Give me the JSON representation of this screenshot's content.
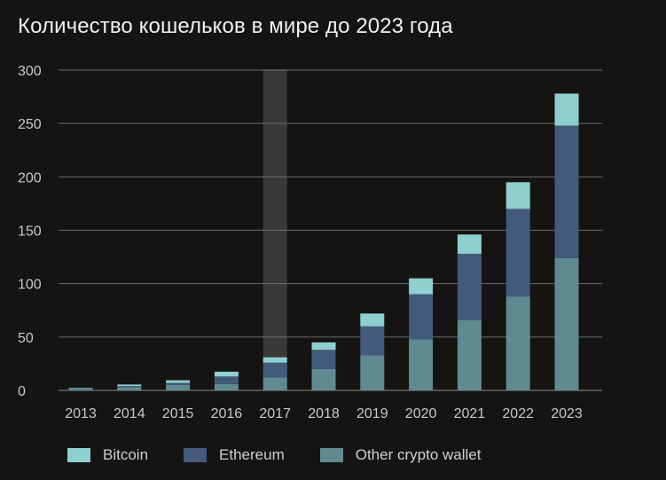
{
  "chart_data": {
    "type": "bar",
    "stacked": true,
    "title": "Количество кошельков в мире до 2023 года",
    "categories": [
      "2013",
      "2014",
      "2015",
      "2016",
      "2017",
      "2018",
      "2019",
      "2020",
      "2021",
      "2022",
      "2023"
    ],
    "series": [
      {
        "name": "Other crypto wallet",
        "color": "#5f8a91",
        "values": [
          1.5,
          3,
          5,
          6,
          12,
          20,
          33,
          48,
          66,
          88,
          124
        ]
      },
      {
        "name": "Ethereum",
        "color": "#445a7a",
        "values": [
          0.5,
          1,
          2,
          7,
          14,
          18,
          27,
          42,
          62,
          82,
          124
        ]
      },
      {
        "name": "Bitcoin",
        "color": "#8ecfd0",
        "values": [
          0.5,
          1.5,
          2.5,
          4.5,
          5,
          7,
          12,
          15,
          18,
          25,
          30
        ]
      }
    ],
    "ylim": [
      0,
      300
    ],
    "yticks": [
      0,
      50,
      100,
      150,
      200,
      250,
      300
    ],
    "highlight_category": "2017",
    "grid": true,
    "legend_position": "bottom"
  }
}
